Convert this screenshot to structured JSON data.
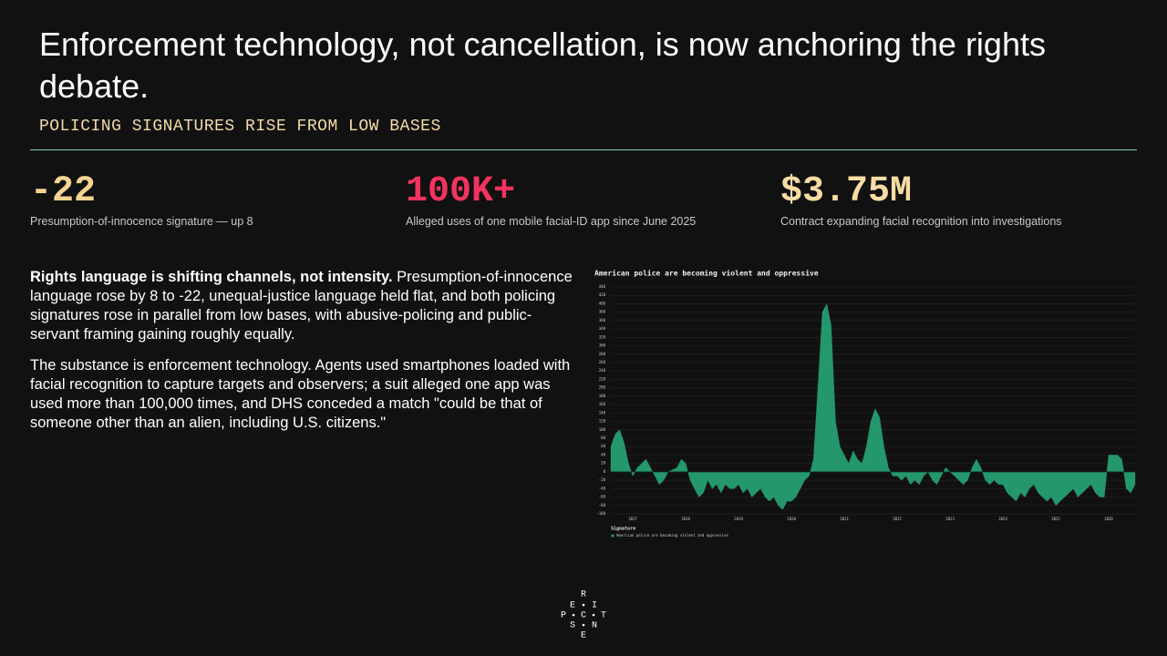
{
  "header": {
    "title": "Enforcement technology, not cancellation, is now anchoring the rights debate.",
    "subtitle": "POLICING SIGNATURES RISE FROM LOW BASES"
  },
  "kpis": [
    {
      "value": "-22",
      "caption": "Presumption-of-innocence signature — up 8"
    },
    {
      "value": "100K+",
      "caption": "Alleged uses of one mobile facial-ID app since June 2025"
    },
    {
      "value": "$3.75M",
      "caption": "Contract expanding facial recognition into investigations"
    }
  ],
  "body": {
    "paragraphs": [
      {
        "lead": "Rights language is shifting channels, not intensity.",
        "text": " Presumption-of-innocence language rose by 8 to -22, unequal-justice language held flat, and both policing signatures rose in parallel from low bases, with abusive-policing and public-servant framing gaining roughly equally."
      },
      {
        "text": "The substance is enforcement technology. Agents used smartphones loaded with facial recognition to capture targets and observers; a suit alleged one app was used more than 100,000 times, and DHS conceded a match \"could be that of someone other than an alien, including U.S. citizens.\""
      }
    ]
  },
  "chart_data": {
    "type": "area",
    "title": "American police are becoming violent and oppressive",
    "legend_title": "Signature",
    "categories": [
      null,
      null,
      null,
      null,
      null,
      "2017",
      null,
      null,
      null,
      null,
      null,
      null,
      null,
      null,
      null,
      null,
      null,
      "2018",
      null,
      null,
      null,
      null,
      null,
      null,
      null,
      null,
      null,
      null,
      null,
      "2019",
      null,
      null,
      null,
      null,
      null,
      null,
      null,
      null,
      null,
      null,
      null,
      "2020",
      null,
      null,
      null,
      null,
      null,
      null,
      null,
      null,
      null,
      null,
      null,
      "2021",
      null,
      null,
      null,
      null,
      null,
      null,
      null,
      null,
      null,
      null,
      null,
      "2022",
      null,
      null,
      null,
      null,
      null,
      null,
      null,
      null,
      null,
      null,
      null,
      "2023",
      null,
      null,
      null,
      null,
      null,
      null,
      null,
      null,
      null,
      null,
      null,
      "2024",
      null,
      null,
      null,
      null,
      null,
      null,
      null,
      null,
      null,
      null,
      null,
      "2025",
      null,
      null,
      null,
      null,
      null,
      null,
      null,
      null,
      null,
      null,
      null,
      "2026",
      null,
      null,
      null,
      null,
      null,
      null
    ],
    "series": [
      {
        "name": "American police are becoming violent and oppressive",
        "color": "#24976d",
        "values": [
          60,
          90,
          100,
          70,
          20,
          -10,
          10,
          20,
          30,
          10,
          -10,
          -30,
          -20,
          0,
          5,
          10,
          30,
          20,
          -20,
          -40,
          -60,
          -50,
          -20,
          -40,
          -30,
          -50,
          -30,
          -40,
          -40,
          -30,
          -50,
          -40,
          -60,
          -50,
          -40,
          -60,
          -70,
          -60,
          -80,
          -90,
          -70,
          -70,
          -60,
          -40,
          -20,
          -10,
          30,
          200,
          380,
          400,
          350,
          120,
          60,
          40,
          20,
          50,
          30,
          20,
          60,
          120,
          150,
          130,
          60,
          10,
          -10,
          -10,
          -20,
          -10,
          -30,
          -20,
          -30,
          -10,
          0,
          -20,
          -30,
          -10,
          10,
          0,
          -10,
          -20,
          -30,
          -20,
          10,
          30,
          10,
          -20,
          -30,
          -20,
          -30,
          -30,
          -50,
          -60,
          -70,
          -50,
          -60,
          -40,
          -30,
          -50,
          -60,
          -70,
          -60,
          -80,
          -70,
          -60,
          -50,
          -40,
          -60,
          -50,
          -40,
          -30,
          -50,
          -60,
          -60,
          40,
          40,
          40,
          30,
          -40,
          -50,
          -30
        ]
      }
    ],
    "ylim": [
      -100,
      440
    ],
    "yticks": [
      -100,
      -80,
      -60,
      -40,
      -20,
      0,
      20,
      40,
      60,
      80,
      100,
      120,
      140,
      160,
      180,
      200,
      220,
      240,
      260,
      280,
      300,
      320,
      340,
      360,
      380,
      400,
      420,
      440
    ],
    "grid": true
  },
  "logo": [
    "R",
    "E",
    "I",
    "P",
    "C",
    "T",
    "S",
    "N",
    "E"
  ]
}
